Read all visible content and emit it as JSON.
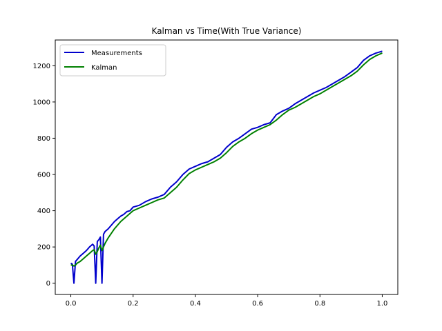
{
  "chart_data": {
    "type": "line",
    "title": "Kalman vs Time(With True Variance)",
    "xlabel": "",
    "ylabel": "",
    "xlim": [
      -0.05,
      1.05
    ],
    "ylim": [
      -62,
      1342
    ],
    "xticks": [
      0.0,
      0.2,
      0.4,
      0.6,
      0.8,
      1.0
    ],
    "xtick_labels": [
      "0.0",
      "0.2",
      "0.4",
      "0.6",
      "0.8",
      "1.0"
    ],
    "yticks": [
      0,
      200,
      400,
      600,
      800,
      1000,
      1200
    ],
    "ytick_labels": [
      "0",
      "200",
      "400",
      "600",
      "800",
      "1000",
      "1200"
    ],
    "grid": false,
    "legend": {
      "position": "upper-left"
    },
    "series": [
      {
        "name": "Measurements",
        "color": "#0000cc",
        "x": [
          0.0,
          0.005,
          0.01,
          0.015,
          0.02,
          0.03,
          0.04,
          0.05,
          0.06,
          0.07,
          0.075,
          0.08,
          0.085,
          0.09,
          0.095,
          0.1,
          0.105,
          0.11,
          0.12,
          0.13,
          0.14,
          0.15,
          0.16,
          0.17,
          0.18,
          0.19,
          0.2,
          0.22,
          0.24,
          0.26,
          0.28,
          0.3,
          0.32,
          0.34,
          0.36,
          0.38,
          0.4,
          0.42,
          0.44,
          0.46,
          0.48,
          0.5,
          0.52,
          0.54,
          0.56,
          0.58,
          0.6,
          0.62,
          0.64,
          0.66,
          0.68,
          0.7,
          0.72,
          0.74,
          0.76,
          0.78,
          0.8,
          0.82,
          0.84,
          0.86,
          0.88,
          0.9,
          0.92,
          0.94,
          0.96,
          0.98,
          1.0
        ],
        "y": [
          110,
          105,
          0,
          120,
          130,
          150,
          165,
          180,
          200,
          215,
          205,
          0,
          230,
          240,
          255,
          0,
          270,
          285,
          300,
          320,
          340,
          355,
          370,
          380,
          395,
          400,
          420,
          430,
          450,
          465,
          475,
          490,
          530,
          560,
          600,
          630,
          645,
          660,
          670,
          690,
          710,
          750,
          780,
          800,
          825,
          850,
          860,
          875,
          885,
          930,
          950,
          965,
          990,
          1010,
          1030,
          1050,
          1065,
          1080,
          1100,
          1120,
          1140,
          1165,
          1190,
          1230,
          1255,
          1270,
          1280
        ]
      },
      {
        "name": "Kalman",
        "color": "#008000",
        "x": [
          0.0,
          0.005,
          0.01,
          0.015,
          0.02,
          0.03,
          0.04,
          0.05,
          0.06,
          0.07,
          0.075,
          0.08,
          0.085,
          0.09,
          0.095,
          0.1,
          0.105,
          0.11,
          0.12,
          0.13,
          0.14,
          0.15,
          0.16,
          0.17,
          0.18,
          0.19,
          0.2,
          0.22,
          0.24,
          0.26,
          0.28,
          0.3,
          0.32,
          0.34,
          0.36,
          0.38,
          0.4,
          0.42,
          0.44,
          0.46,
          0.48,
          0.5,
          0.52,
          0.54,
          0.56,
          0.58,
          0.6,
          0.62,
          0.64,
          0.66,
          0.68,
          0.7,
          0.72,
          0.74,
          0.76,
          0.78,
          0.8,
          0.82,
          0.84,
          0.86,
          0.88,
          0.9,
          0.92,
          0.94,
          0.96,
          0.98,
          1.0
        ],
        "y": [
          100,
          100,
          95,
          100,
          110,
          120,
          135,
          150,
          165,
          180,
          185,
          160,
          175,
          195,
          210,
          180,
          200,
          220,
          250,
          275,
          300,
          320,
          340,
          355,
          370,
          385,
          400,
          415,
          430,
          445,
          460,
          470,
          500,
          530,
          570,
          605,
          625,
          640,
          655,
          670,
          690,
          720,
          755,
          780,
          800,
          825,
          845,
          860,
          875,
          900,
          930,
          955,
          970,
          990,
          1010,
          1030,
          1045,
          1065,
          1085,
          1105,
          1125,
          1145,
          1170,
          1205,
          1235,
          1255,
          1270
        ]
      }
    ]
  }
}
